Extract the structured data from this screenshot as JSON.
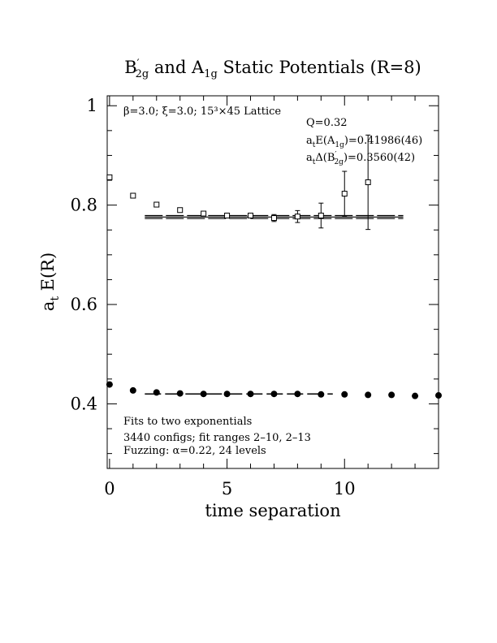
{
  "chart_data": {
    "type": "scatter",
    "title": {
      "pre": "B",
      "sup": "′",
      "sub": "2g",
      "mid": " and A",
      "sub2": "1g",
      "post": " Static Potentials (R=8)"
    },
    "xlabel": "time separation",
    "ylabel": {
      "pre": "a",
      "sub": "t",
      "post": " E(R)"
    },
    "xlim": [
      -0.1,
      14
    ],
    "ylim": [
      0.27,
      1.02
    ],
    "xticks_major": [
      0,
      5,
      10
    ],
    "xtick_labels": [
      "0",
      "5",
      "10"
    ],
    "xticks_minor": [
      1,
      2,
      3,
      4,
      6,
      7,
      8,
      9,
      11,
      12,
      13
    ],
    "yticks_major": [
      0.4,
      0.6,
      0.8,
      1.0
    ],
    "ytick_labels": [
      "0.4",
      "0.6",
      "0.8",
      "1"
    ],
    "yticks_minor": [
      0.3,
      0.35,
      0.45,
      0.5,
      0.55,
      0.65,
      0.7,
      0.75,
      0.85,
      0.9,
      0.95
    ],
    "series": [
      {
        "marker": "open-square",
        "points": [
          {
            "x": 0,
            "y": 0.856,
            "err": 0.002
          },
          {
            "x": 1,
            "y": 0.819,
            "err": 0.002
          },
          {
            "x": 2,
            "y": 0.801,
            "err": 0.002
          },
          {
            "x": 3,
            "y": 0.79,
            "err": 0.002
          },
          {
            "x": 4,
            "y": 0.783,
            "err": 0.002
          },
          {
            "x": 5,
            "y": 0.779,
            "err": 0.003
          },
          {
            "x": 6,
            "y": 0.779,
            "err": 0.004
          },
          {
            "x": 7,
            "y": 0.774,
            "err": 0.007
          },
          {
            "x": 8,
            "y": 0.777,
            "err": 0.012
          },
          {
            "x": 9,
            "y": 0.779,
            "err": 0.025
          },
          {
            "x": 10,
            "y": 0.823,
            "err": 0.045
          },
          {
            "x": 11,
            "y": 0.846,
            "err": 0.095
          }
        ],
        "fit": {
          "value": 0.776,
          "band": [
            0.773,
            0.779
          ],
          "x_range": [
            1.5,
            12.5
          ]
        }
      },
      {
        "marker": "filled-circle",
        "points": [
          {
            "x": 0,
            "y": 0.439
          },
          {
            "x": 1,
            "y": 0.427
          },
          {
            "x": 2,
            "y": 0.423
          },
          {
            "x": 3,
            "y": 0.421
          },
          {
            "x": 4,
            "y": 0.42
          },
          {
            "x": 5,
            "y": 0.42
          },
          {
            "x": 6,
            "y": 0.42
          },
          {
            "x": 7,
            "y": 0.42
          },
          {
            "x": 8,
            "y": 0.42
          },
          {
            "x": 9,
            "y": 0.419
          },
          {
            "x": 10,
            "y": 0.419
          },
          {
            "x": 11,
            "y": 0.418
          },
          {
            "x": 12,
            "y": 0.418
          },
          {
            "x": 13,
            "y": 0.416
          },
          {
            "x": 14,
            "y": 0.417
          }
        ],
        "fit": {
          "value": 0.42,
          "x_range": [
            1.5,
            9.5
          ]
        }
      }
    ],
    "annotations": {
      "lattice": "β=3.0; ξ=3.0; 15³×45 Lattice",
      "q": "Q=0.32",
      "energy": {
        "pre": "a",
        "sub": "t",
        "mid": "E(A",
        "sub2": "1g",
        "post": ")=0.41986(46)"
      },
      "gap": {
        "pre": "a",
        "sub": "t",
        "mid": "Δ(B",
        "sup": "′",
        "sub2": "2g",
        "post": ")=0.3560(42)"
      },
      "fits": "Fits to two exponentials",
      "configs": "3440 configs; fit ranges 2–10, 2–13",
      "fuzzing": "Fuzzing: α=0.22, 24 levels"
    }
  }
}
